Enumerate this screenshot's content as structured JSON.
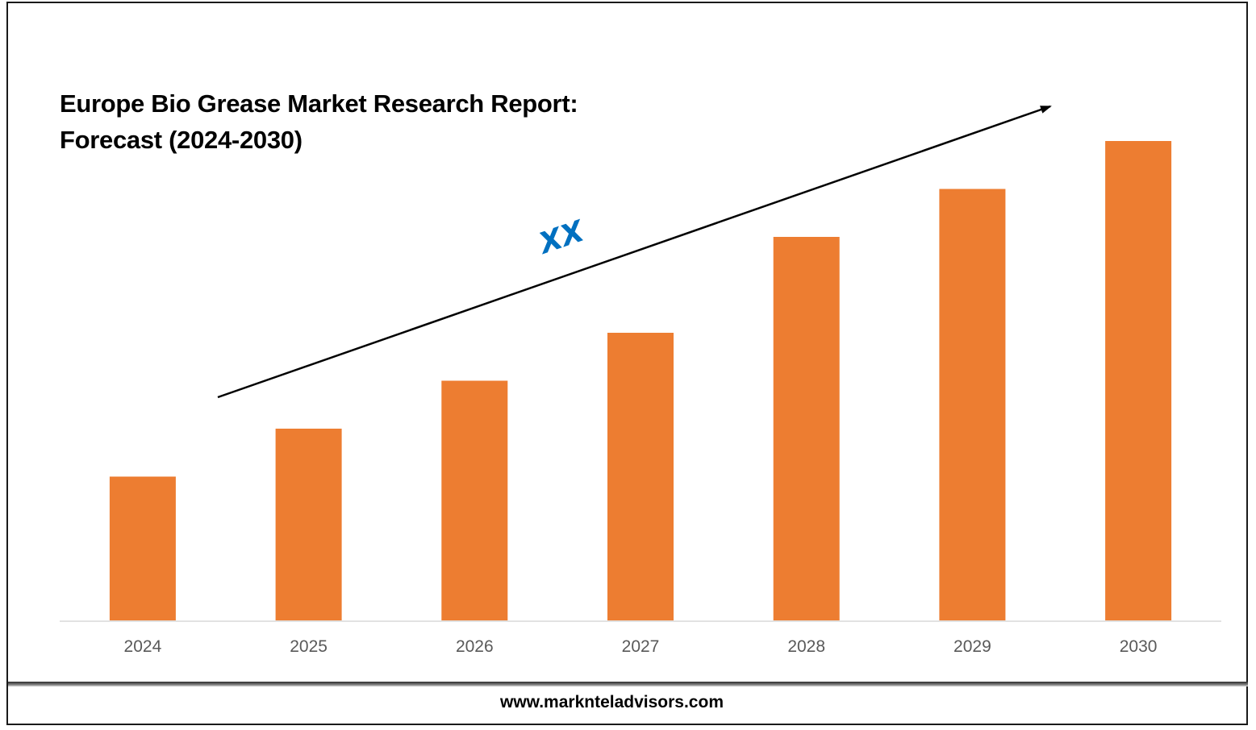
{
  "title_line1": "Europe Bio Grease Market Research Report:",
  "title_line2": "Forecast (2024-2030)",
  "footer": {
    "website": "www.marknteladvisors.com"
  },
  "chart_data": {
    "type": "bar",
    "title": "Europe Bio Grease Market Research Report: Forecast (2024-2030)",
    "categories": [
      "2024",
      "2025",
      "2026",
      "2027",
      "2028",
      "2029",
      "2030"
    ],
    "values": [
      30,
      40,
      50,
      60,
      80,
      90,
      100
    ],
    "value_note": "No value axis is printed; values are relative bar heights",
    "xlabel": "",
    "ylabel": "",
    "ylim": [
      0,
      100
    ],
    "grid": false,
    "legend": "none",
    "bar_color": "#ED7D31",
    "axis_color": "#D9D9D9",
    "annotation": {
      "label": "XX",
      "type": "arrow",
      "color": "#0070C0"
    }
  }
}
